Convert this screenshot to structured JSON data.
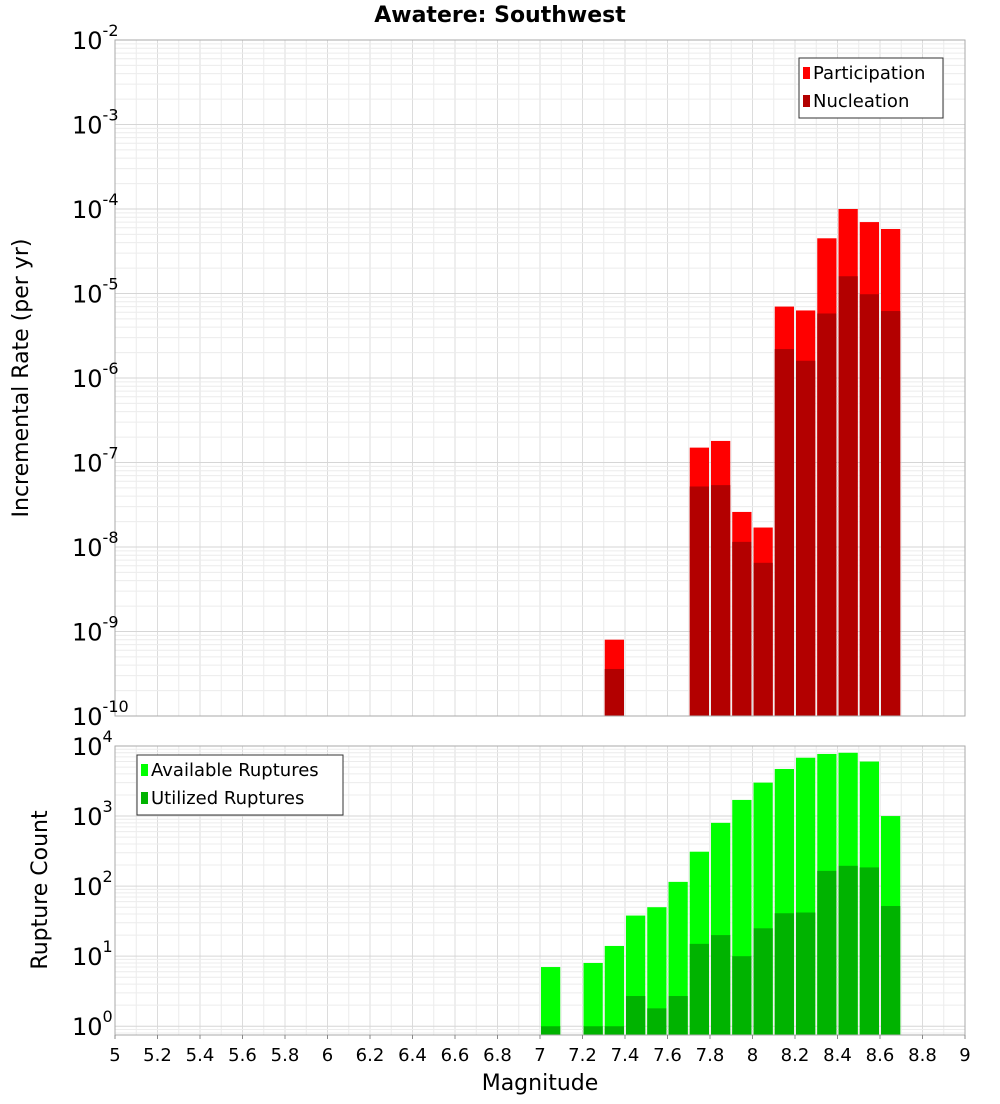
{
  "chart_data": [
    {
      "type": "bar",
      "title": "Awatere: Southwest",
      "ylabel": "Incremental Rate (per yr)",
      "xlabel": "",
      "yscale": "log",
      "ylim": [
        1e-10,
        0.01
      ],
      "y_tick_exponents": [
        "-10",
        "-9",
        "-8",
        "-7",
        "-6",
        "-5",
        "-4",
        "-3",
        "-2"
      ],
      "xlim": [
        5,
        9
      ],
      "bin_width": 0.1,
      "grid": true,
      "legend": "top-right",
      "series": [
        {
          "name": "Participation",
          "color": "#ff0000",
          "x": [
            7.35,
            7.75,
            7.85,
            7.95,
            8.05,
            8.15,
            8.25,
            8.35,
            8.45,
            8.55,
            8.65
          ],
          "values": [
            8e-10,
            1.5e-07,
            1.8e-07,
            2.6e-08,
            1.7e-08,
            7e-06,
            6.3e-06,
            4.5e-05,
            0.0001,
            7e-05,
            5.8e-05
          ]
        },
        {
          "name": "Nucleation",
          "color": "#b30000",
          "x": [
            7.35,
            7.75,
            7.85,
            7.95,
            8.05,
            8.15,
            8.25,
            8.35,
            8.45,
            8.55,
            8.65
          ],
          "values": [
            3.6e-10,
            5.2e-08,
            5.4e-08,
            1.15e-08,
            6.5e-09,
            2.2e-06,
            1.6e-06,
            5.8e-06,
            1.6e-05,
            9.8e-06,
            6.2e-06
          ]
        }
      ]
    },
    {
      "type": "bar",
      "title": "",
      "ylabel": "Rupture Count",
      "xlabel": "Magnitude",
      "yscale": "log",
      "ylim": [
        0.75,
        10000
      ],
      "y_tick_exponents": [
        "0",
        "1",
        "2",
        "3",
        "4"
      ],
      "xlim": [
        5,
        9
      ],
      "x_ticks": [
        "5",
        "5.2",
        "5.4",
        "5.6",
        "5.8",
        "6",
        "6.2",
        "6.4",
        "6.6",
        "6.8",
        "7",
        "7.2",
        "7.4",
        "7.6",
        "7.8",
        "8",
        "8.2",
        "8.4",
        "8.6",
        "8.8",
        "9"
      ],
      "bin_width": 0.1,
      "grid": true,
      "legend": "top-left",
      "series": [
        {
          "name": "Available Ruptures",
          "color": "#00ff00",
          "x": [
            7.05,
            7.25,
            7.35,
            7.45,
            7.55,
            7.65,
            7.75,
            7.85,
            7.95,
            8.05,
            8.15,
            8.25,
            8.35,
            8.45,
            8.55,
            8.65
          ],
          "values": [
            7,
            8,
            14,
            38,
            50,
            115,
            310,
            800,
            1700,
            3000,
            4700,
            6800,
            7700,
            8000,
            6000,
            1000
          ]
        },
        {
          "name": "Utilized Ruptures",
          "color": "#00b300",
          "x": [
            7.05,
            7.25,
            7.35,
            7.45,
            7.55,
            7.65,
            7.75,
            7.85,
            7.95,
            8.05,
            8.15,
            8.25,
            8.35,
            8.45,
            8.55,
            8.65
          ],
          "values": [
            1,
            1,
            1,
            2.7,
            1.8,
            2.7,
            15,
            20,
            10,
            25,
            41,
            42,
            165,
            195,
            185,
            52
          ]
        }
      ]
    }
  ]
}
